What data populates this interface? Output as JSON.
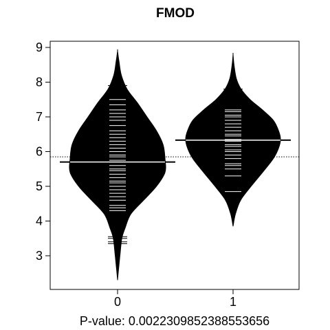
{
  "chart_data": {
    "type": "beanplot",
    "title": "FMOD",
    "xlabel": "P-value: 0.0022309852388553656",
    "categories": [
      "0",
      "1"
    ],
    "ylim": [
      2,
      9.3
    ],
    "yticks": [
      3,
      4,
      5,
      6,
      7,
      8,
      9
    ],
    "overall_mean": 5.85,
    "colors": {
      "bean": "#000000",
      "beanline": "#ffffff",
      "mean_line": "#000000"
    },
    "series": [
      {
        "name": "0",
        "mean": 5.7,
        "density": [
          [
            2.3,
            0.0
          ],
          [
            2.6,
            0.02
          ],
          [
            3.0,
            0.05
          ],
          [
            3.5,
            0.09
          ],
          [
            3.8,
            0.16
          ],
          [
            4.2,
            0.28
          ],
          [
            4.6,
            0.55
          ],
          [
            5.0,
            0.82
          ],
          [
            5.4,
            1.0
          ],
          [
            5.8,
            1.0
          ],
          [
            6.2,
            0.96
          ],
          [
            6.6,
            0.82
          ],
          [
            7.0,
            0.62
          ],
          [
            7.4,
            0.42
          ],
          [
            7.8,
            0.2
          ],
          [
            8.2,
            0.08
          ],
          [
            8.6,
            0.03
          ],
          [
            8.9,
            0.0
          ]
        ],
        "observations": [
          3.35,
          3.4,
          3.5,
          3.55,
          4.3,
          4.38,
          4.45,
          4.6,
          4.7,
          4.8,
          4.9,
          5.0,
          5.1,
          5.15,
          5.25,
          5.35,
          5.45,
          5.5,
          5.6,
          5.7,
          5.75,
          5.85,
          5.9,
          6.0,
          6.1,
          6.2,
          6.3,
          6.4,
          6.5,
          6.6,
          6.75,
          6.9,
          7.0,
          7.1,
          7.2,
          7.35,
          7.5,
          7.9
        ]
      },
      {
        "name": "1",
        "mean": 6.33,
        "density": [
          [
            3.85,
            0.0
          ],
          [
            4.2,
            0.05
          ],
          [
            4.6,
            0.16
          ],
          [
            5.0,
            0.38
          ],
          [
            5.4,
            0.62
          ],
          [
            5.8,
            0.85
          ],
          [
            6.1,
            0.96
          ],
          [
            6.35,
            1.0
          ],
          [
            6.6,
            0.96
          ],
          [
            6.9,
            0.85
          ],
          [
            7.2,
            0.62
          ],
          [
            7.5,
            0.36
          ],
          [
            7.8,
            0.17
          ],
          [
            8.1,
            0.07
          ],
          [
            8.5,
            0.02
          ],
          [
            8.8,
            0.0
          ]
        ],
        "observations": [
          4.85,
          5.3,
          5.5,
          5.6,
          5.65,
          5.8,
          5.9,
          6.0,
          6.05,
          6.15,
          6.2,
          6.3,
          6.35,
          6.45,
          6.5,
          6.6,
          6.7,
          6.8,
          6.9,
          7.0,
          7.05,
          7.15,
          7.2,
          7.8
        ]
      }
    ]
  }
}
